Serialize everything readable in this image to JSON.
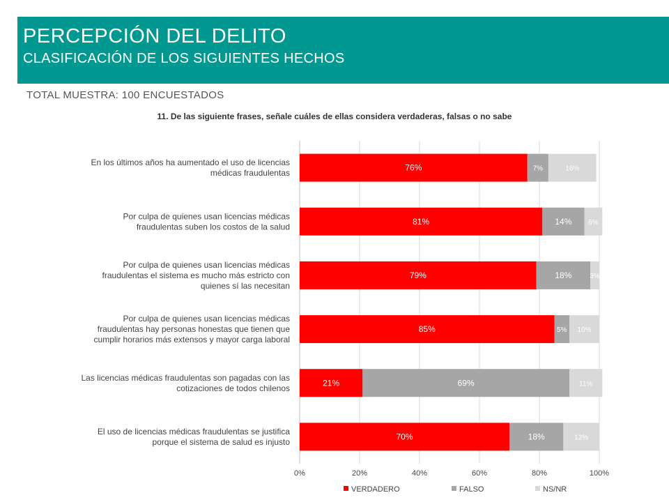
{
  "header": {
    "title": "PERCEPCIÓN DEL DELITO",
    "subtitle": "CLASIFICACIÓN DE LOS SIGUIENTES HECHOS"
  },
  "sample_note": "TOTAL MUESTRA: 100 ENCUESTADOS",
  "question": "11. De las siguiente frases, señale cuáles de ellas considera verdaderas, falsas o no sabe",
  "chart_data": {
    "type": "bar",
    "orientation": "horizontal",
    "stacked": true,
    "percent_stacked": true,
    "categories": [
      "En los últimos años ha aumentado el uso de licencias médicas fraudulentas",
      "Por culpa de quienes usan licencias médicas fraudulentas suben los costos de la salud",
      "Por culpa de quienes usan licencias médicas fraudulentas el sistema es mucho más estricto con quienes sí las necesitan",
      "Por culpa de quienes usan licencias médicas fraudulentas hay personas honestas que tienen que cumplir horarios más extensos y mayor carga laboral",
      "Las licencias médicas fraudulentas son pagadas con las cotizaciones de todos chilenos",
      "El uso de licencias médicas fraudulentas se justifica porque el sistema de salud es injusto"
    ],
    "category_lines": [
      [
        "En los últimos años ha aumentado el uso de licencias",
        "médicas fraudulentas"
      ],
      [
        "Por culpa de quienes usan licencias médicas",
        "fraudulentas suben los costos de la salud"
      ],
      [
        "Por culpa de quienes usan licencias médicas",
        "fraudulentas el sistema es mucho más estricto con",
        "quienes sí las necesitan"
      ],
      [
        "Por culpa de quienes usan licencias médicas",
        "fraudulentas hay personas honestas que tienen que",
        "cumplir horarios más extensos y mayor carga laboral"
      ],
      [
        "Las licencias médicas fraudulentas son pagadas con las",
        "cotizaciones de todos chilenos"
      ],
      [
        "El uso de licencias médicas fraudulentas se justifica",
        "porque el sistema de salud es injusto"
      ]
    ],
    "series": [
      {
        "name": "VERDADERO",
        "color": "#ff0000",
        "values": [
          76,
          81,
          79,
          85,
          21,
          70
        ]
      },
      {
        "name": "FALSO",
        "color": "#a6a6a6",
        "values": [
          7,
          14,
          18,
          5,
          69,
          18
        ]
      },
      {
        "name": "NS/NR",
        "color": "#d9d9d9",
        "values": [
          16,
          6,
          3,
          10,
          11,
          12
        ]
      }
    ],
    "xlim": [
      0,
      100
    ],
    "x_ticks": [
      "0%",
      "20%",
      "40%",
      "60%",
      "80%",
      "100%"
    ],
    "label_suffix": "%",
    "legend_position": "bottom",
    "grid": true
  }
}
